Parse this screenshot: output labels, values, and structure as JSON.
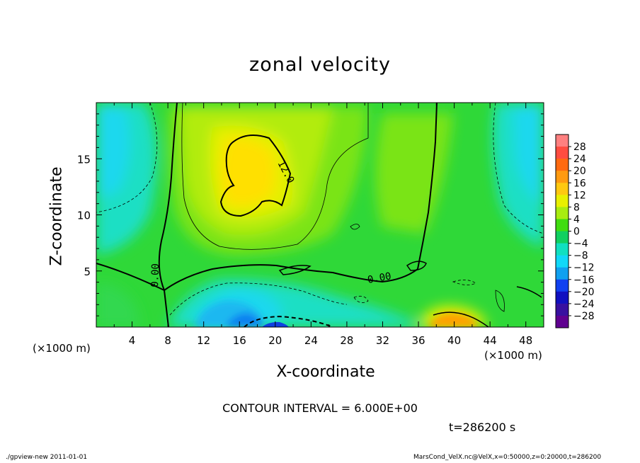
{
  "chart_data": {
    "type": "heatmap",
    "title": "zonal velocity",
    "xlabel": "X-coordinate",
    "ylabel": "Z-coordinate",
    "x_unit": "(×1000 m)",
    "y_unit": "(×1000 m)",
    "xlim": [
      0,
      50
    ],
    "ylim": [
      0,
      20
    ],
    "x_ticks": [
      4,
      8,
      12,
      16,
      20,
      24,
      28,
      32,
      36,
      40,
      44,
      48
    ],
    "y_ticks": [
      5,
      10,
      15
    ],
    "colorbar_labels": [
      "28",
      "24",
      "20",
      "16",
      "12",
      "8",
      "4",
      "0",
      "−4",
      "−8",
      "−12",
      "−16",
      "−20",
      "−24",
      "−28"
    ],
    "colorbar_colors": [
      "#ff8080",
      "#ff4c40",
      "#ff6a10",
      "#ff9a10",
      "#ffc810",
      "#e8f000",
      "#a8ec10",
      "#40dd10",
      "#10d060",
      "#10e0c0",
      "#10d8f8",
      "#10a0f0",
      "#1040f0",
      "#1010c0",
      "#3810a0",
      "#600090"
    ],
    "contour_labels": [
      "12.0",
      "0.00",
      "0.00"
    ],
    "contour_interval": "CONTOUR INTERVAL = 6.000E+00",
    "time": "t=286200 s",
    "footer_left": "./gpview-new  2011-01-01",
    "footer_right": "MarsCond_VelX.nc@VelX,x=0:50000,z=0:20000,t=286200"
  }
}
